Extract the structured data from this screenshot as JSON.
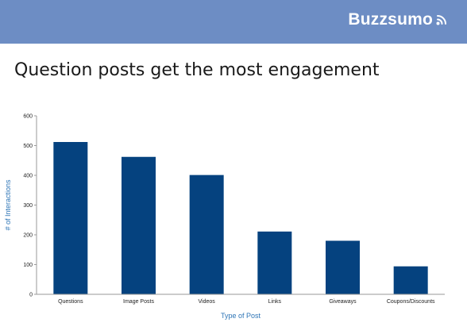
{
  "header": {
    "brand_name": "Buzzsumo",
    "brand_icon": "signal-waves-icon",
    "background_color": "#6d8dc4"
  },
  "slide_title": "Question posts get the most engagement",
  "chart_data": {
    "type": "bar",
    "categories": [
      "Questions",
      "Image Posts",
      "Videos",
      "Links",
      "Giveaways",
      "Coupons/Discounts"
    ],
    "values": [
      512,
      462,
      401,
      211,
      180,
      94
    ],
    "xlabel": "Type of Post",
    "ylabel": "# of Interactions",
    "ylim": [
      0,
      600
    ],
    "yticks": [
      0,
      100,
      200,
      300,
      400,
      500,
      600
    ],
    "bar_color": "#05427f",
    "axis_label_color": "#2e75b6",
    "grid": false,
    "legend": "none"
  }
}
